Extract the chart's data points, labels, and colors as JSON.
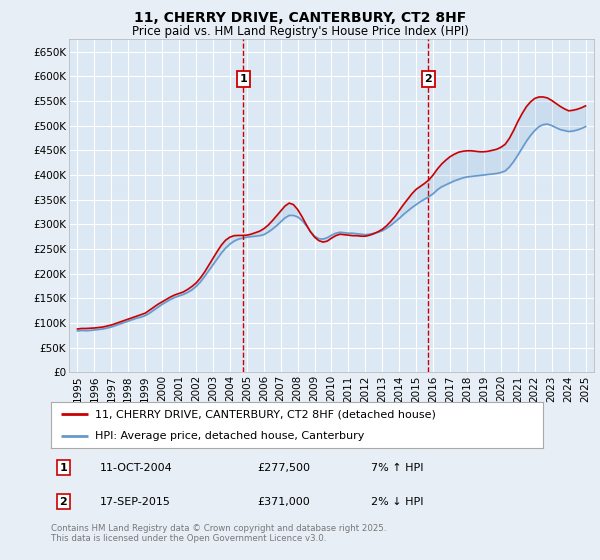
{
  "title": "11, CHERRY DRIVE, CANTERBURY, CT2 8HF",
  "subtitle": "Price paid vs. HM Land Registry's House Price Index (HPI)",
  "background_color": "#dce9f5",
  "plot_bg_color": "#dce9f5",
  "fig_bg_color": "#e8eef5",
  "grid_color": "#ffffff",
  "hpi_color": "#6699cc",
  "price_color": "#cc0000",
  "marker1_x": 2004.79,
  "marker1_label": "1",
  "marker1_date": "11-OCT-2004",
  "marker1_price": "£277,500",
  "marker1_hpi": "7% ↑ HPI",
  "marker2_x": 2015.72,
  "marker2_label": "2",
  "marker2_date": "17-SEP-2015",
  "marker2_price": "£371,000",
  "marker2_hpi": "2% ↓ HPI",
  "ylim": [
    0,
    675000
  ],
  "xlim": [
    1994.5,
    2025.5
  ],
  "yticks": [
    0,
    50000,
    100000,
    150000,
    200000,
    250000,
    300000,
    350000,
    400000,
    450000,
    500000,
    550000,
    600000,
    650000
  ],
  "ytick_labels": [
    "£0",
    "£50K",
    "£100K",
    "£150K",
    "£200K",
    "£250K",
    "£300K",
    "£350K",
    "£400K",
    "£450K",
    "£500K",
    "£550K",
    "£600K",
    "£650K"
  ],
  "xticks": [
    1995,
    1996,
    1997,
    1998,
    1999,
    2000,
    2001,
    2002,
    2003,
    2004,
    2005,
    2006,
    2007,
    2008,
    2009,
    2010,
    2011,
    2012,
    2013,
    2014,
    2015,
    2016,
    2017,
    2018,
    2019,
    2020,
    2021,
    2022,
    2023,
    2024,
    2025
  ],
  "legend_line1": "11, CHERRY DRIVE, CANTERBURY, CT2 8HF (detached house)",
  "legend_line2": "HPI: Average price, detached house, Canterbury",
  "footer": "Contains HM Land Registry data © Crown copyright and database right 2025.\nThis data is licensed under the Open Government Licence v3.0.",
  "hpi_data_x": [
    1995.0,
    1995.25,
    1995.5,
    1995.75,
    1996.0,
    1996.25,
    1996.5,
    1996.75,
    1997.0,
    1997.25,
    1997.5,
    1997.75,
    1998.0,
    1998.25,
    1998.5,
    1998.75,
    1999.0,
    1999.25,
    1999.5,
    1999.75,
    2000.0,
    2000.25,
    2000.5,
    2000.75,
    2001.0,
    2001.25,
    2001.5,
    2001.75,
    2002.0,
    2002.25,
    2002.5,
    2002.75,
    2003.0,
    2003.25,
    2003.5,
    2003.75,
    2004.0,
    2004.25,
    2004.5,
    2004.75,
    2005.0,
    2005.25,
    2005.5,
    2005.75,
    2006.0,
    2006.25,
    2006.5,
    2006.75,
    2007.0,
    2007.25,
    2007.5,
    2007.75,
    2008.0,
    2008.25,
    2008.5,
    2008.75,
    2009.0,
    2009.25,
    2009.5,
    2009.75,
    2010.0,
    2010.25,
    2010.5,
    2010.75,
    2011.0,
    2011.25,
    2011.5,
    2011.75,
    2012.0,
    2012.25,
    2012.5,
    2012.75,
    2013.0,
    2013.25,
    2013.5,
    2013.75,
    2014.0,
    2014.25,
    2014.5,
    2014.75,
    2015.0,
    2015.25,
    2015.5,
    2015.75,
    2016.0,
    2016.25,
    2016.5,
    2016.75,
    2017.0,
    2017.25,
    2017.5,
    2017.75,
    2018.0,
    2018.25,
    2018.5,
    2018.75,
    2019.0,
    2019.25,
    2019.5,
    2019.75,
    2020.0,
    2020.25,
    2020.5,
    2020.75,
    2021.0,
    2021.25,
    2021.5,
    2021.75,
    2022.0,
    2022.25,
    2022.5,
    2022.75,
    2023.0,
    2023.25,
    2023.5,
    2023.75,
    2024.0,
    2024.25,
    2024.5,
    2024.75,
    2025.0
  ],
  "hpi_data_y": [
    84000,
    85000,
    84500,
    85000,
    86000,
    87000,
    88000,
    90000,
    92000,
    95000,
    98000,
    101000,
    104000,
    107000,
    110000,
    112000,
    115000,
    120000,
    126000,
    132000,
    138000,
    143000,
    148000,
    152000,
    155000,
    158000,
    162000,
    167000,
    174000,
    183000,
    194000,
    206000,
    218000,
    230000,
    242000,
    252000,
    260000,
    266000,
    270000,
    272000,
    274000,
    275000,
    276000,
    277000,
    279000,
    284000,
    290000,
    297000,
    305000,
    313000,
    318000,
    318000,
    315000,
    308000,
    298000,
    286000,
    276000,
    271000,
    270000,
    273000,
    278000,
    282000,
    284000,
    283000,
    282000,
    282000,
    281000,
    280000,
    279000,
    280000,
    282000,
    284000,
    287000,
    292000,
    298000,
    305000,
    312000,
    320000,
    327000,
    334000,
    340000,
    346000,
    351000,
    356000,
    362000,
    370000,
    376000,
    380000,
    384000,
    388000,
    391000,
    394000,
    396000,
    397000,
    398000,
    399000,
    400000,
    401000,
    402000,
    403000,
    405000,
    408000,
    416000,
    427000,
    440000,
    454000,
    468000,
    480000,
    490000,
    498000,
    502000,
    503000,
    500000,
    496000,
    492000,
    490000,
    488000,
    489000,
    491000,
    494000,
    498000
  ],
  "price_data_x": [
    1995.0,
    1995.25,
    1995.5,
    1995.75,
    1996.0,
    1996.25,
    1996.5,
    1996.75,
    1997.0,
    1997.25,
    1997.5,
    1997.75,
    1998.0,
    1998.25,
    1998.5,
    1998.75,
    1999.0,
    1999.25,
    1999.5,
    1999.75,
    2000.0,
    2000.25,
    2000.5,
    2000.75,
    2001.0,
    2001.25,
    2001.5,
    2001.75,
    2002.0,
    2002.25,
    2002.5,
    2002.75,
    2003.0,
    2003.25,
    2003.5,
    2003.75,
    2004.0,
    2004.25,
    2004.5,
    2004.75,
    2005.0,
    2005.25,
    2005.5,
    2005.75,
    2006.0,
    2006.25,
    2006.5,
    2006.75,
    2007.0,
    2007.25,
    2007.5,
    2007.75,
    2008.0,
    2008.25,
    2008.5,
    2008.75,
    2009.0,
    2009.25,
    2009.5,
    2009.75,
    2010.0,
    2010.25,
    2010.5,
    2010.75,
    2011.0,
    2011.25,
    2011.5,
    2011.75,
    2012.0,
    2012.25,
    2012.5,
    2012.75,
    2013.0,
    2013.25,
    2013.5,
    2013.75,
    2014.0,
    2014.25,
    2014.5,
    2014.75,
    2015.0,
    2015.25,
    2015.5,
    2015.75,
    2016.0,
    2016.25,
    2016.5,
    2016.75,
    2017.0,
    2017.25,
    2017.5,
    2017.75,
    2018.0,
    2018.25,
    2018.5,
    2018.75,
    2019.0,
    2019.25,
    2019.5,
    2019.75,
    2020.0,
    2020.25,
    2020.5,
    2020.75,
    2021.0,
    2021.25,
    2021.5,
    2021.75,
    2022.0,
    2022.25,
    2022.5,
    2022.75,
    2023.0,
    2023.25,
    2023.5,
    2023.75,
    2024.0,
    2024.25,
    2024.5,
    2024.75,
    2025.0
  ],
  "price_data_y": [
    88000,
    89000,
    89000,
    89500,
    90000,
    91000,
    92000,
    94000,
    96000,
    99000,
    102000,
    105000,
    108000,
    111000,
    114000,
    117000,
    120000,
    126000,
    132000,
    138000,
    143000,
    148000,
    153000,
    157000,
    160000,
    163000,
    168000,
    174000,
    181000,
    191000,
    203000,
    217000,
    231000,
    245000,
    258000,
    268000,
    274000,
    277000,
    277500,
    277500,
    278000,
    280000,
    283000,
    286000,
    291000,
    298000,
    307000,
    317000,
    327000,
    337000,
    343000,
    340000,
    330000,
    316000,
    300000,
    285000,
    274000,
    267000,
    264000,
    266000,
    272000,
    277000,
    280000,
    279000,
    278000,
    277000,
    277000,
    276000,
    276000,
    278000,
    281000,
    285000,
    290000,
    297000,
    306000,
    316000,
    328000,
    340000,
    351000,
    362000,
    371000,
    377000,
    383000,
    390000,
    400000,
    412000,
    422000,
    430000,
    437000,
    442000,
    446000,
    448000,
    449000,
    449000,
    448000,
    447000,
    447000,
    448000,
    450000,
    452000,
    456000,
    462000,
    474000,
    490000,
    508000,
    524000,
    538000,
    548000,
    555000,
    558000,
    558000,
    556000,
    551000,
    545000,
    539000,
    534000,
    530000,
    531000,
    533000,
    536000,
    540000
  ]
}
